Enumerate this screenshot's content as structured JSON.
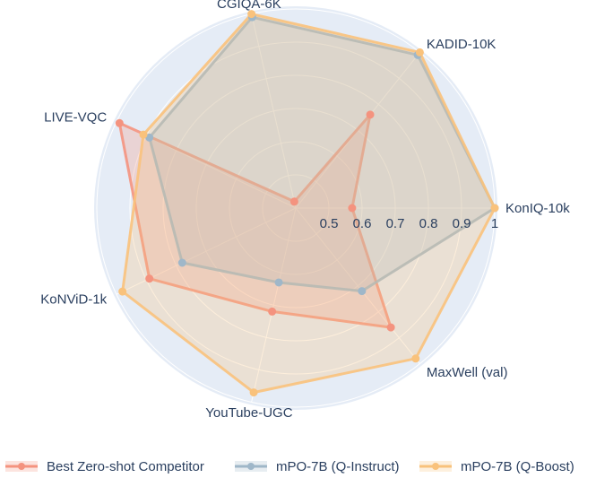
{
  "chart_data": {
    "type": "radar",
    "axes": [
      "KonIQ-10k",
      "KADID-10K",
      "CGIQA-6K",
      "LIVE-VQC",
      "KoNViD-1k",
      "YouTube-UGC",
      "MaxWell (val)"
    ],
    "radial_ticks": [
      "0.5",
      "0.6",
      "0.7",
      "0.8",
      "0.9",
      "1"
    ],
    "tick_values": [
      0.5,
      0.6,
      0.7,
      0.8,
      0.9,
      1.0
    ],
    "rlim": [
      0.4,
      1.0
    ],
    "grid": true,
    "legend_position": "bottom",
    "series": [
      {
        "name": "Best Zero-shot Competitor",
        "color": "#f4937f",
        "values": [
          0.57,
          0.76,
          0.42,
          0.99,
          0.89,
          0.72,
          0.86
        ]
      },
      {
        "name": "mPO-7B (Q-Instruct)",
        "color": "#9fb7c9",
        "values": [
          1.0,
          0.99,
          0.99,
          0.89,
          0.78,
          0.63,
          0.72
        ]
      },
      {
        "name": "mPO-7B (Q-Boost)",
        "color": "#f9c27c",
        "values": [
          1.0,
          1.0,
          1.0,
          0.91,
          0.98,
          0.97,
          0.98
        ]
      }
    ]
  }
}
